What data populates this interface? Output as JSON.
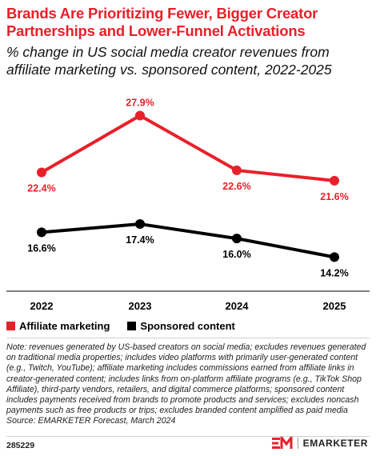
{
  "title": "Brands Are Prioritizing Fewer, Bigger Creator Partnerships and Lower-Funnel Activations",
  "subtitle": "% change in US social media creator revenues from affiliate marketing vs. sponsored content, 2022-2025",
  "chart_data": {
    "type": "line",
    "x": [
      "2022",
      "2023",
      "2024",
      "2025"
    ],
    "series": [
      {
        "name": "Affiliate marketing",
        "color": "#e8202a",
        "values": [
          22.4,
          27.9,
          22.6,
          21.6
        ]
      },
      {
        "name": "Sponsored content",
        "color": "#000000",
        "values": [
          16.6,
          17.4,
          16.0,
          14.2
        ]
      }
    ],
    "value_suffix": "%",
    "grid": false,
    "legend": "bottom-left"
  },
  "note": "Note: revenues generated by US-based creators on social media; excludes revenues generated on traditional media properties; includes video platforms with primarily user-generated content (e.g., Twitch, YouTube); affiliate marketing includes commissions earned from affiliate links in creator-generated content; includes links from on-platform affiliate programs (e.g., TikTok Shop Affiliate), third-party vendors, retailers, and digital commerce platforms; sponsored content includes payments received from brands to promote products and services; excludes noncash payments such as free products or trips; excludes branded content amplified as paid media",
  "source": "Source: EMARKETER Forecast, March 2024",
  "footer": {
    "chart_id": "285229",
    "brand_name": "EMARKETER",
    "brand_color": "#e8202a"
  }
}
